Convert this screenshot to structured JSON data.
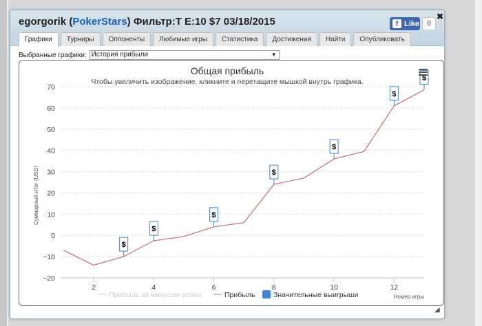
{
  "header": {
    "user": "egorgorik",
    "site": "PokerStars",
    "filter": "Фильтр:T E:10 $7 03/18/2015"
  },
  "facebook": {
    "like_label": "Like",
    "count": "0"
  },
  "tabs": [
    {
      "label": "Графики",
      "active": true
    },
    {
      "label": "Турниры",
      "active": false
    },
    {
      "label": "Оппоненты",
      "active": false
    },
    {
      "label": "Любимые игры",
      "active": false
    },
    {
      "label": "Статистика",
      "active": false
    },
    {
      "label": "Достижения",
      "active": false
    },
    {
      "label": "Найти",
      "active": false
    },
    {
      "label": "Опубликовать",
      "active": false
    }
  ],
  "chart_select": {
    "label": "Выбранные графики:",
    "value": "История прибыли"
  },
  "chart_data": {
    "type": "line",
    "title": "Общая прибыль",
    "subtitle": "Чтобы увеличить изображение, кликните и перетащите мышкой внутрь графика.",
    "xlabel": "Номер игры",
    "ylabel": "Суммарный итог (USD)",
    "xlim": [
      0.9,
      13.0
    ],
    "ylim": [
      -20,
      70
    ],
    "x_ticks": [
      "2",
      "4",
      "6",
      "8",
      "10",
      "12"
    ],
    "y_ticks": [
      "70",
      "60",
      "50",
      "40",
      "30",
      "20",
      "10",
      "0",
      "−10",
      "−20"
    ],
    "grid": true,
    "legend_position": "bottom",
    "series": [
      {
        "name": "Прибыль за минусом рейка",
        "color": "#cccccc",
        "visible": false,
        "x": [],
        "y": []
      },
      {
        "name": "Прибыль",
        "color": "#c07070",
        "x": [
          1,
          2,
          3,
          4,
          5,
          6,
          7,
          8,
          9,
          10,
          11,
          12,
          13
        ],
        "y": [
          -7,
          -14,
          -10,
          -2.5,
          -0.5,
          4,
          6,
          24,
          27,
          36,
          39.5,
          61,
          68.5
        ]
      },
      {
        "name": "Значительные выигрыши",
        "color": "#3d85d8",
        "marker_label": "$",
        "x": [
          3,
          4,
          6,
          8,
          10,
          12,
          13
        ],
        "y": [
          -10,
          -2.5,
          4,
          24,
          36,
          61,
          68.5
        ]
      }
    ]
  }
}
